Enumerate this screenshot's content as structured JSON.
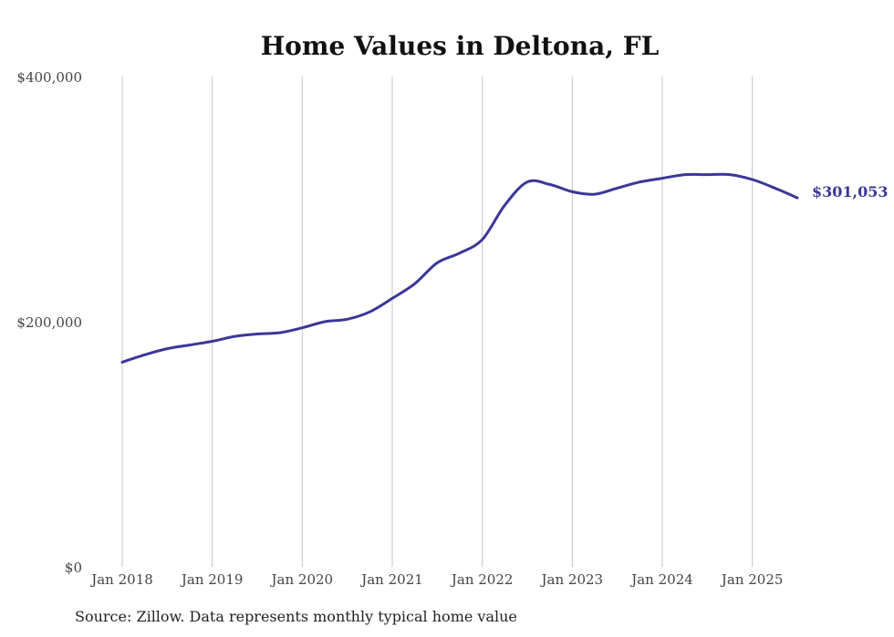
{
  "chart_data": {
    "type": "line",
    "title": "Home Values in Deltona, FL",
    "xlabel": "",
    "ylabel": "",
    "ylim": [
      0,
      400000
    ],
    "xlim": [
      "2018-01",
      "2025-07"
    ],
    "y_ticks": [
      {
        "value": 0,
        "label": "$0"
      },
      {
        "value": 200000,
        "label": "$200,000"
      },
      {
        "value": 400000,
        "label": "$400,000"
      }
    ],
    "x_ticks": [
      {
        "value": "2018-01",
        "label": "Jan 2018"
      },
      {
        "value": "2019-01",
        "label": "Jan 2019"
      },
      {
        "value": "2020-01",
        "label": "Jan 2020"
      },
      {
        "value": "2021-01",
        "label": "Jan 2021"
      },
      {
        "value": "2022-01",
        "label": "Jan 2022"
      },
      {
        "value": "2023-01",
        "label": "Jan 2023"
      },
      {
        "value": "2024-01",
        "label": "Jan 2024"
      },
      {
        "value": "2025-01",
        "label": "Jan 2025"
      }
    ],
    "grid": "vertical",
    "series": [
      {
        "color": "#3b3797",
        "x": [
          "2018-01",
          "2018-04",
          "2018-07",
          "2018-10",
          "2019-01",
          "2019-04",
          "2019-07",
          "2019-10",
          "2020-01",
          "2020-04",
          "2020-07",
          "2020-10",
          "2021-01",
          "2021-04",
          "2021-07",
          "2021-10",
          "2022-01",
          "2022-04",
          "2022-07",
          "2022-10",
          "2023-01",
          "2023-04",
          "2023-07",
          "2023-10",
          "2024-01",
          "2024-04",
          "2024-07",
          "2024-10",
          "2025-01",
          "2025-04",
          "2025-07"
        ],
        "values": [
          167000,
          173000,
          178000,
          181000,
          184000,
          188000,
          190000,
          191000,
          195000,
          200000,
          202000,
          208000,
          219000,
          231000,
          248000,
          256000,
          267000,
          295000,
          314000,
          312000,
          306000,
          304000,
          309000,
          314000,
          317000,
          320000,
          320000,
          320000,
          316000,
          309000,
          301053
        ]
      }
    ],
    "end_label": "$301,053"
  },
  "footer": {
    "source": "Source: Zillow. Data represents monthly typical home value"
  }
}
